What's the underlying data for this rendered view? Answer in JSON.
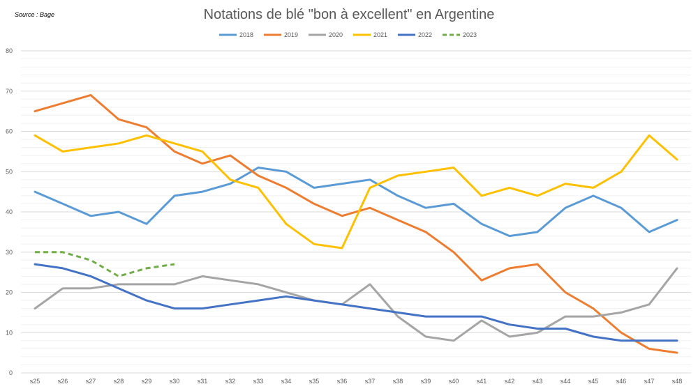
{
  "source_note": "Source : Bage",
  "chart_data": {
    "type": "line",
    "title": "Notations de blé \"bon à excellent\" en Argentine",
    "xlabel": "",
    "ylabel": "",
    "ylim": [
      0,
      80
    ],
    "yticks": [
      0,
      10,
      20,
      30,
      40,
      50,
      60,
      70,
      80
    ],
    "grid": true,
    "minor_grid": true,
    "legend_position": "top",
    "categories": [
      "s25",
      "s26",
      "s27",
      "s28",
      "s29",
      "s30",
      "s31",
      "s32",
      "s33",
      "s34",
      "s35",
      "s36",
      "s37",
      "s38",
      "s39",
      "s40",
      "s41",
      "s42",
      "s43",
      "s44",
      "s45",
      "s46",
      "s47",
      "s48"
    ],
    "series": [
      {
        "name": "2018",
        "color": "#5B9BD5",
        "style": "solid",
        "values": [
          45,
          42,
          39,
          40,
          37,
          44,
          45,
          47,
          51,
          50,
          46,
          47,
          48,
          44,
          41,
          42,
          37,
          34,
          35,
          41,
          44,
          41,
          35,
          38
        ]
      },
      {
        "name": "2019",
        "color": "#ED7D31",
        "style": "solid",
        "values": [
          65,
          67,
          69,
          63,
          61,
          55,
          52,
          54,
          49,
          46,
          42,
          39,
          41,
          38,
          35,
          30,
          23,
          26,
          27,
          20,
          16,
          10,
          6,
          5
        ]
      },
      {
        "name": "2020",
        "color": "#A5A5A5",
        "style": "solid",
        "values": [
          16,
          21,
          21,
          22,
          22,
          22,
          24,
          23,
          22,
          20,
          18,
          17,
          22,
          14,
          9,
          8,
          13,
          9,
          10,
          14,
          14,
          15,
          17,
          26
        ]
      },
      {
        "name": "2021",
        "color": "#FFC000",
        "style": "solid",
        "values": [
          59,
          55,
          56,
          57,
          59,
          57,
          55,
          48,
          46,
          37,
          32,
          31,
          46,
          49,
          50,
          51,
          44,
          46,
          44,
          47,
          46,
          50,
          59,
          53
        ]
      },
      {
        "name": "2022",
        "color": "#4472C4",
        "style": "solid",
        "values": [
          27,
          26,
          24,
          21,
          18,
          16,
          16,
          17,
          18,
          19,
          18,
          17,
          16,
          15,
          14,
          14,
          14,
          12,
          11,
          11,
          9,
          8,
          8,
          8
        ]
      },
      {
        "name": "2023",
        "color": "#70AD47",
        "style": "dashed",
        "values": [
          30,
          30,
          28,
          24,
          26,
          27,
          null,
          null,
          null,
          null,
          null,
          null,
          null,
          null,
          null,
          null,
          null,
          null,
          null,
          null,
          null,
          null,
          null,
          null
        ]
      }
    ]
  }
}
